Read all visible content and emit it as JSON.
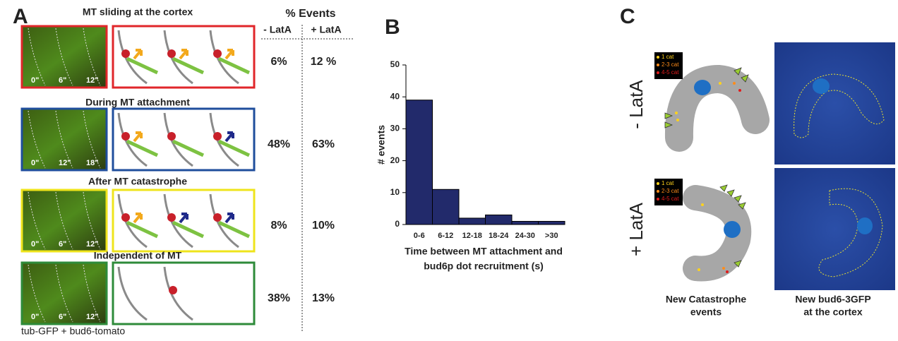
{
  "panel_a": {
    "label": "A",
    "header": "% Events",
    "col_minus": "- LatA",
    "col_plus": "+ LatA",
    "rows": [
      {
        "title": "MT sliding at the cortex",
        "times": [
          "0\"",
          "6\"",
          "12\""
        ],
        "minus": "6%",
        "plus": "12 %"
      },
      {
        "title": "During MT attachment",
        "times": [
          "0\"",
          "12\"",
          "18\""
        ],
        "minus": "48%",
        "plus": "63%"
      },
      {
        "title": "After  MT catastrophe",
        "times": [
          "0\"",
          "6\"",
          "12\""
        ],
        "minus": "8%",
        "plus": "10%"
      },
      {
        "title": "Independent of MT",
        "times": [
          "0\"",
          "6\"",
          "12\""
        ],
        "minus": "38%",
        "plus": "13%"
      }
    ],
    "caption": "tub-GFP + bud6-tomato"
  },
  "chart_data": {
    "type": "bar",
    "label": "B",
    "ylabel": "# events",
    "xlabel": [
      "Time between MT attachment and",
      "bud6p dot recruitment (s)"
    ],
    "categories": [
      "0-6",
      "6-12",
      "12-18",
      "18-24",
      "24-30",
      ">30"
    ],
    "values": [
      39,
      11,
      2,
      3,
      1,
      1
    ],
    "color": "#222a6b",
    "ylim": [
      0,
      50
    ],
    "yticks": [
      0,
      10,
      20,
      30,
      40,
      50
    ]
  },
  "panel_c": {
    "label": "C",
    "row_minus": "- LatA",
    "row_plus": "+ LatA",
    "legend": [
      "1 cat",
      "2-3 cat",
      "4-5 cat"
    ],
    "caption_left": [
      "New Catastrophe",
      "events"
    ],
    "caption_right": [
      "New bud6-3GFP",
      "at the cortex"
    ]
  }
}
